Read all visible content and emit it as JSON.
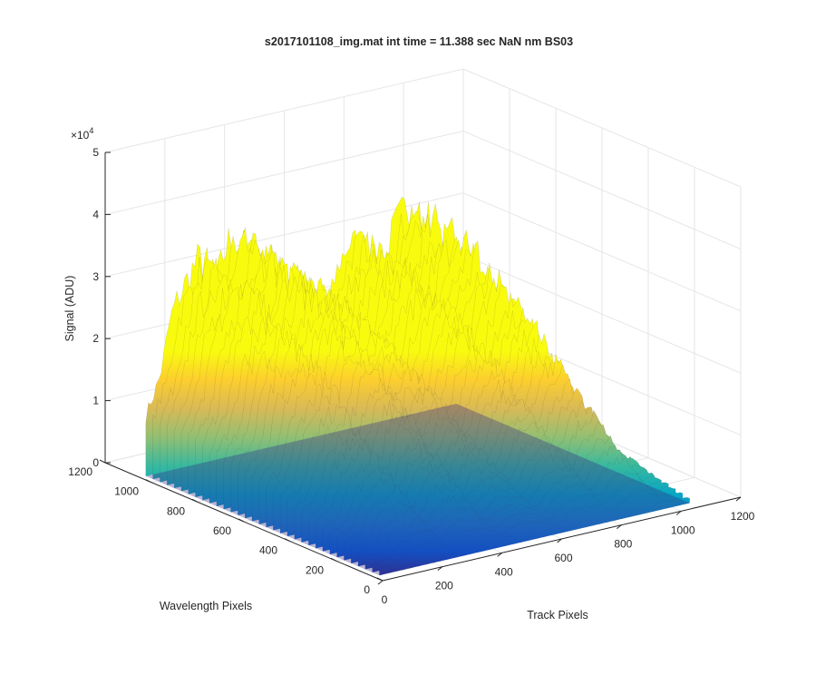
{
  "chart_data": {
    "type": "surface",
    "title": "s2017101108_img.mat int time = 11.388 sec  NaN nm BS03",
    "xlabel": "Track Pixels",
    "ylabel": "Wavelength Pixels",
    "zlabel": "Signal (ADU)",
    "z_exponent_label": "×10",
    "z_exponent_power": "4",
    "xlim": [
      0,
      1200
    ],
    "ylim": [
      0,
      1200
    ],
    "zlim": [
      0,
      50000
    ],
    "x_ticks": [
      "0",
      "200",
      "400",
      "600",
      "800",
      "1000",
      "1200"
    ],
    "y_ticks": [
      "0",
      "200",
      "400",
      "600",
      "800",
      "1000",
      "1200"
    ],
    "z_ticks": [
      "0",
      "1",
      "2",
      "3",
      "4",
      "5"
    ],
    "grid": true,
    "colormap": "parula",
    "colormap_stops": [
      "#352a87",
      "#0363e1",
      "#1485d4",
      "#06a7c6",
      "#38b99e",
      "#92bf73",
      "#d9ba56",
      "#fcce2e",
      "#f9fb0e"
    ],
    "edge_color": "#2a2a2a",
    "peak_signal_profile": {
      "track_pixels": [
        0,
        100,
        200,
        300,
        400,
        500,
        600,
        700,
        800,
        900,
        1000,
        1100,
        1200
      ],
      "signal": [
        6000,
        25000,
        33500,
        35000,
        31000,
        27000,
        21000,
        30000,
        28000,
        34000,
        15000,
        2000,
        500
      ]
    }
  }
}
